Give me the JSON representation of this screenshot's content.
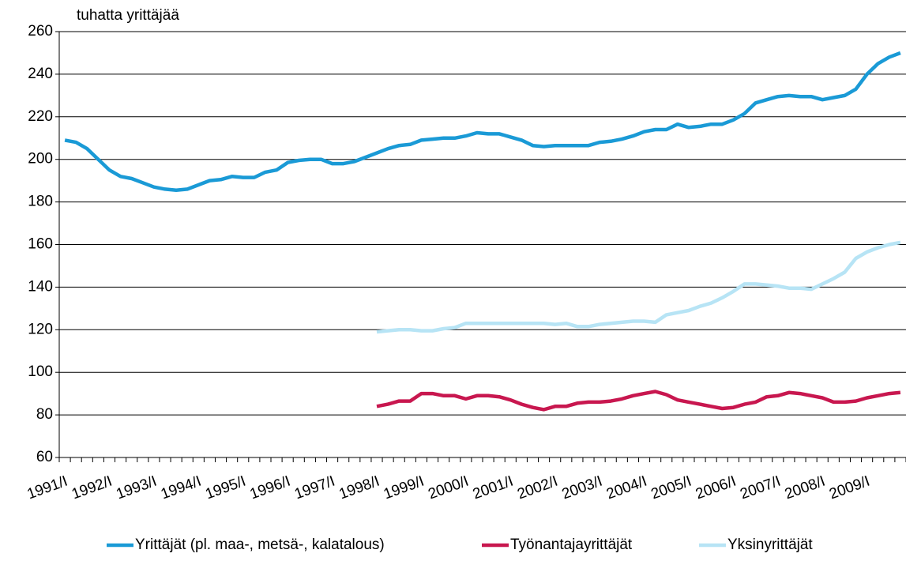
{
  "chart_data": {
    "type": "line",
    "y_axis_label": "tuhatta yrittäjää",
    "categories": [
      "1991/I",
      null,
      null,
      null,
      "1992/I",
      null,
      null,
      null,
      "1993/I",
      null,
      null,
      null,
      "1994/I",
      null,
      null,
      null,
      "1995/I",
      null,
      null,
      null,
      "1996/I",
      null,
      null,
      null,
      "1997/I",
      null,
      null,
      null,
      "1998/I",
      null,
      null,
      null,
      "1999/I",
      null,
      null,
      null,
      "2000/I",
      null,
      null,
      null,
      "2001/I",
      null,
      null,
      null,
      "2002/I",
      null,
      null,
      null,
      "2003/I",
      null,
      null,
      null,
      "2004/I",
      null,
      null,
      null,
      "2005/I",
      null,
      null,
      null,
      "2006/I",
      null,
      null,
      null,
      "2007/I",
      null,
      null,
      null,
      "2008/I",
      null,
      null,
      null,
      "2009/I",
      null,
      null,
      null
    ],
    "series": [
      {
        "name": "Yrittäjät (pl. maa-, metsä-, kalatalous)",
        "color": "#1a9ad6",
        "values": [
          209,
          208,
          205,
          200,
          195,
          192,
          191,
          189,
          187,
          186,
          185.5,
          186,
          188,
          190,
          190.5,
          192,
          191.5,
          191.5,
          194,
          195,
          198.5,
          199.5,
          200,
          200,
          198,
          198,
          199,
          201,
          203,
          205,
          206.5,
          207,
          209,
          209.5,
          210,
          210,
          211,
          212.5,
          212,
          212,
          210.5,
          209,
          206.5,
          206,
          206.5,
          206.5,
          206.5,
          206.5,
          208,
          208.5,
          209.5,
          211,
          213,
          214,
          214,
          216.5,
          215,
          215.5,
          216.5,
          216.5,
          218.5,
          221.5,
          226.5,
          228,
          229.5,
          230,
          229.5,
          229.5,
          228,
          229,
          230,
          233,
          240,
          245,
          248,
          250
        ]
      },
      {
        "name": "Työnantajayrittäjät",
        "color": "#c8174f",
        "values": [
          null,
          null,
          null,
          null,
          null,
          null,
          null,
          null,
          null,
          null,
          null,
          null,
          null,
          null,
          null,
          null,
          null,
          null,
          null,
          null,
          null,
          null,
          null,
          null,
          null,
          null,
          null,
          null,
          84,
          85,
          86.5,
          86.5,
          90,
          90,
          89,
          89,
          87.5,
          89,
          89,
          88.5,
          87,
          85,
          83.5,
          82.5,
          84,
          84,
          85.5,
          86,
          86,
          86.5,
          87.5,
          89,
          90,
          91,
          89.5,
          87,
          86,
          85,
          84,
          83,
          83.5,
          85,
          86,
          88.5,
          89,
          90.5,
          90,
          89,
          88,
          86,
          86,
          86.5,
          88,
          89,
          90,
          90.5
        ]
      },
      {
        "name": "Yksinyrittäjät",
        "color": "#b7e4f5",
        "values": [
          null,
          null,
          null,
          null,
          null,
          null,
          null,
          null,
          null,
          null,
          null,
          null,
          null,
          null,
          null,
          null,
          null,
          null,
          null,
          null,
          null,
          null,
          null,
          null,
          null,
          null,
          null,
          null,
          119,
          119.5,
          120,
          120,
          119.5,
          119.5,
          120.5,
          121,
          123,
          123,
          123,
          123,
          123,
          123,
          123,
          123,
          122.5,
          123,
          121.5,
          121.5,
          122.5,
          123,
          123.5,
          124,
          124,
          123.5,
          127,
          128,
          129,
          131,
          132.5,
          135,
          138,
          141.5,
          141.5,
          141,
          140.5,
          139.5,
          139.5,
          139,
          141.5,
          144,
          147,
          153.5,
          156.5,
          158.5,
          160,
          161
        ]
      }
    ],
    "ylim": [
      60,
      260
    ],
    "yticks": [
      60,
      80,
      100,
      120,
      140,
      160,
      180,
      200,
      220,
      240,
      260
    ],
    "grid": true,
    "legend": "bottom"
  }
}
